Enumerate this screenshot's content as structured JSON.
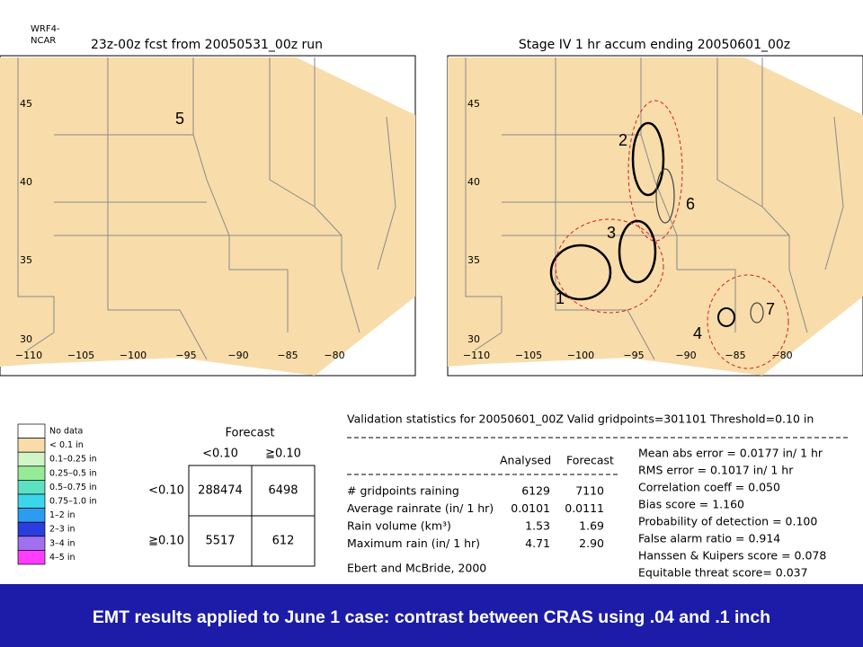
{
  "header_note": [
    "WRF4-",
    "NCAR"
  ],
  "maps": [
    {
      "title": "23z-00z fcst from 20050531_00z run",
      "lat_labels": [
        "45",
        "40",
        "35",
        "30"
      ],
      "lon_labels": [
        "−110",
        "−105",
        "−100",
        "−95",
        "−90",
        "−85",
        "−80"
      ],
      "annotations": [
        "5"
      ]
    },
    {
      "title": "Stage IV  1 hr accum ending 20050601_00z",
      "lat_labels": [
        "45",
        "40",
        "35",
        "30"
      ],
      "lon_labels": [
        "−110",
        "−105",
        "−100",
        "−95",
        "−90",
        "−85",
        "−80"
      ],
      "annotations": [
        "2",
        "6",
        "3",
        "1",
        "7",
        "4"
      ]
    }
  ],
  "legend": [
    {
      "label": "No data",
      "color": "#ffffff"
    },
    {
      "label": "< 0.1 in",
      "color": "#f8dcaa"
    },
    {
      "label": "0.1–0.25 in",
      "color": "#d2f5c8"
    },
    {
      "label": "0.25–0.5 in",
      "color": "#96ec96"
    },
    {
      "label": "0.5–0.75 in",
      "color": "#5ce2c2"
    },
    {
      "label": "0.75–1.0 in",
      "color": "#3cd6ec"
    },
    {
      "label": "1–2 in",
      "color": "#2c9cf0"
    },
    {
      "label": "2–3 in",
      "color": "#2a3ee0"
    },
    {
      "label": "3–4 in",
      "color": "#a070ee"
    },
    {
      "label": "4–5 in",
      "color": "#ff3cff"
    }
  ],
  "contingency": {
    "title": "Forecast",
    "columns": [
      "<0.10",
      "≧0.10"
    ],
    "rows": [
      {
        "label": "<0.10",
        "cells": [
          "288474",
          "6498"
        ]
      },
      {
        "label": "≧0.10",
        "cells": [
          "5517",
          "612"
        ]
      }
    ]
  },
  "stats": {
    "title": "Validation statistics for 20050601_00Z  Valid gridpoints=301101  Threshold=0.10 in",
    "columns": [
      "Analysed",
      "Forecast"
    ],
    "rows": [
      {
        "label": "# gridpoints raining",
        "values": [
          "6129",
          "7110"
        ]
      },
      {
        "label": "Average rainrate (in/ 1 hr)",
        "values": [
          "0.0101",
          "0.0111"
        ]
      },
      {
        "label": "Rain volume (km³)",
        "values": [
          "1.53",
          "1.69"
        ]
      },
      {
        "label": "Maximum rain (in/ 1 hr)",
        "values": [
          "4.71",
          "2.90"
        ]
      }
    ],
    "scores": [
      "Mean abs error = 0.0177 in/ 1 hr",
      "RMS error = 0.1017 in/ 1 hr",
      "Correlation coeff = 0.050",
      "Bias score = 1.160",
      "Probability of detection = 0.100",
      "False alarm ratio = 0.914",
      "Hanssen & Kuipers score = 0.078",
      "Equitable threat score= 0.037"
    ],
    "citation": "Ebert and McBride, 2000"
  },
  "footer": "EMT results applied to June 1 case:  contrast between CRAS using .04 and .1 inch"
}
